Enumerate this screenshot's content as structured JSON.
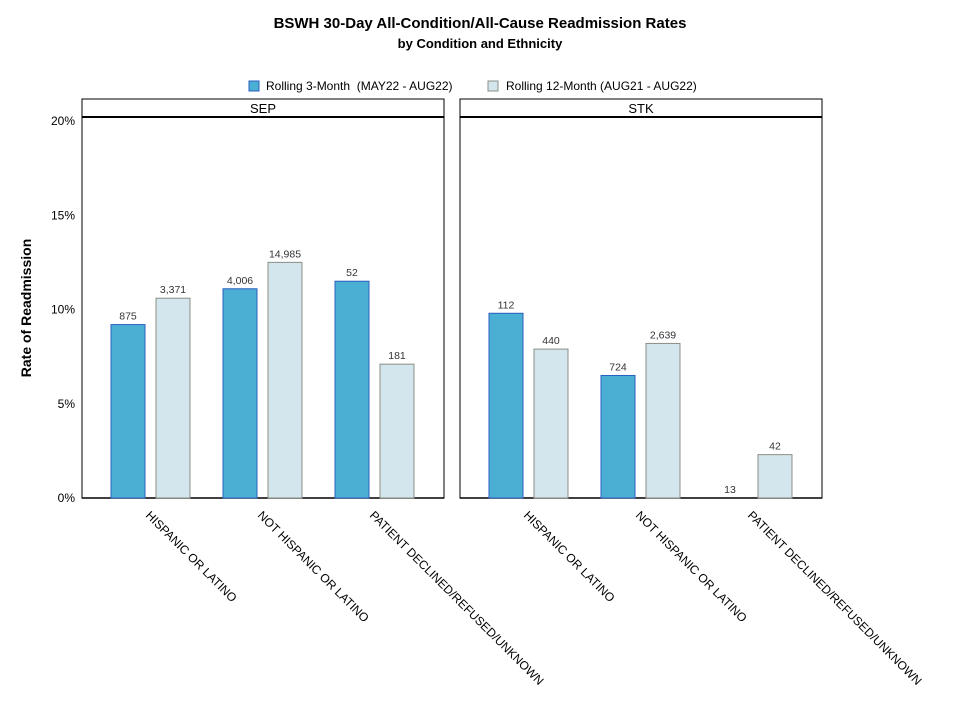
{
  "chart_data": {
    "type": "bar",
    "title": "BSWH 30-Day All-Condition/All-Cause Readmission Rates",
    "subtitle": "by Condition and Ethnicity",
    "ylabel": "Rate of Readmission",
    "xlabel": "",
    "ylim": [
      0,
      0.21
    ],
    "yticks": [
      0,
      0.05,
      0.1,
      0.15,
      0.2
    ],
    "ytick_labels": [
      "0%",
      "5%",
      "10%",
      "15%",
      "20%"
    ],
    "legend_position": "top-center",
    "categories": [
      "HISPANIC OR LATINO",
      "NOT HISPANIC OR LATINO",
      "PATIENT DECLINED/REFUSED/UNKNOWN"
    ],
    "series": [
      {
        "name": "Rolling 3-Month  (MAY22 - AUG22)",
        "color": "#4bafd3",
        "edge": "#2a5fbf"
      },
      {
        "name": "Rolling 12-Month (AUG21 - AUG22)",
        "color": "#d3e6ee",
        "edge": "#8c8c84"
      }
    ],
    "panels": [
      {
        "name": "SEP",
        "values": [
          [
            0.092,
            0.106
          ],
          [
            0.111,
            0.125
          ],
          [
            0.115,
            0.071
          ]
        ],
        "labels": [
          [
            "875",
            "3,371"
          ],
          [
            "4,006",
            "14,985"
          ],
          [
            "52",
            "181"
          ]
        ]
      },
      {
        "name": "STK",
        "values": [
          [
            0.098,
            0.079
          ],
          [
            0.065,
            0.082
          ],
          [
            0.0,
            0.023
          ]
        ],
        "labels": [
          [
            "112",
            "440"
          ],
          [
            "724",
            "2,639"
          ],
          [
            "13",
            "42"
          ]
        ]
      }
    ]
  }
}
